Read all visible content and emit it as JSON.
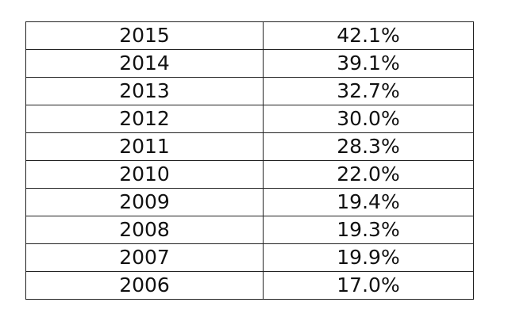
{
  "table": {
    "rows": [
      [
        "2015",
        "42.1%"
      ],
      [
        "2014",
        "39.1%"
      ],
      [
        "2013",
        "32.7%"
      ],
      [
        "2012",
        "30.0%"
      ],
      [
        "2011",
        "28.3%"
      ],
      [
        "2010",
        "22.0%"
      ],
      [
        "2009",
        "19.4%"
      ],
      [
        "2008",
        "19.3%"
      ],
      [
        "2007",
        "19.9%"
      ],
      [
        "2006",
        "17.0%"
      ]
    ]
  }
}
